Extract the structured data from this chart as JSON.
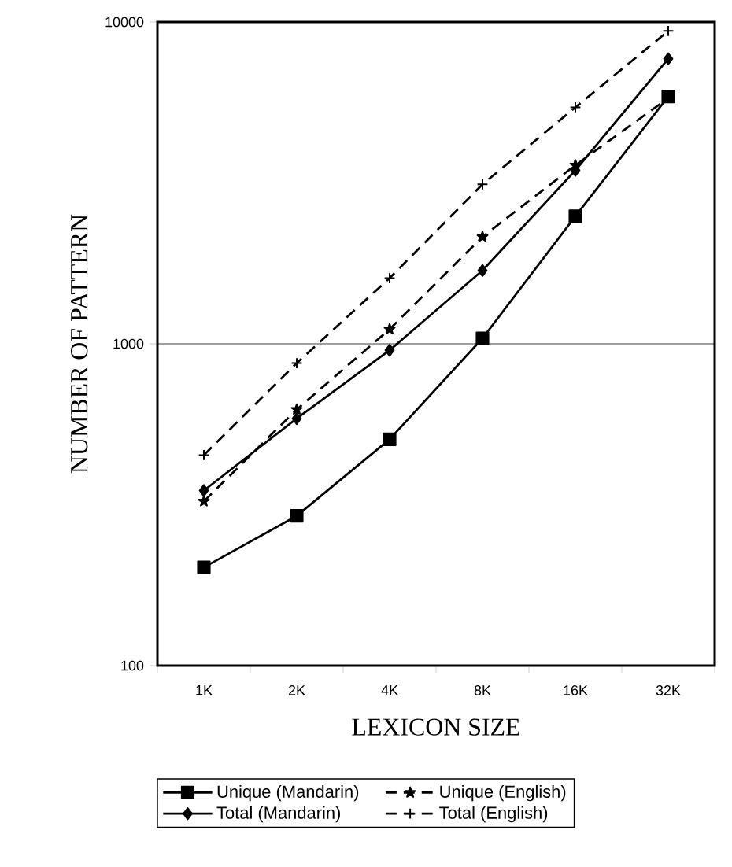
{
  "chart_data": {
    "type": "line",
    "xlabel": "LEXICON SIZE",
    "ylabel": "NUMBER OF PATTERN",
    "categories": [
      "1K",
      "2K",
      "4K",
      "8K",
      "16K",
      "32K"
    ],
    "log": "y",
    "ylim": [
      100,
      10000
    ],
    "yticks": [
      100,
      1000,
      10000
    ],
    "grid": "y",
    "legend": "bottom",
    "series": [
      {
        "name": "Unique (Mandarin)",
        "color": "#000000",
        "marker": "square",
        "line_style": "solid",
        "values": [
          202,
          292,
          505,
          1040,
          2490,
          5870
        ]
      },
      {
        "name": "Unique (English)",
        "color": "#000000",
        "marker": "star",
        "line_style": "dashed",
        "values": [
          324,
          625,
          1110,
          2150,
          3590,
          5800
        ]
      },
      {
        "name": "Total (Mandarin)",
        "color": "#000000",
        "marker": "diamond",
        "line_style": "solid",
        "values": [
          350,
          586,
          955,
          1690,
          3460,
          7690
        ]
      },
      {
        "name": "Total (English)",
        "color": "#000000",
        "marker": "cross",
        "line_style": "dashed",
        "values": [
          451,
          871,
          1600,
          3130,
          5430,
          9380
        ]
      }
    ]
  }
}
